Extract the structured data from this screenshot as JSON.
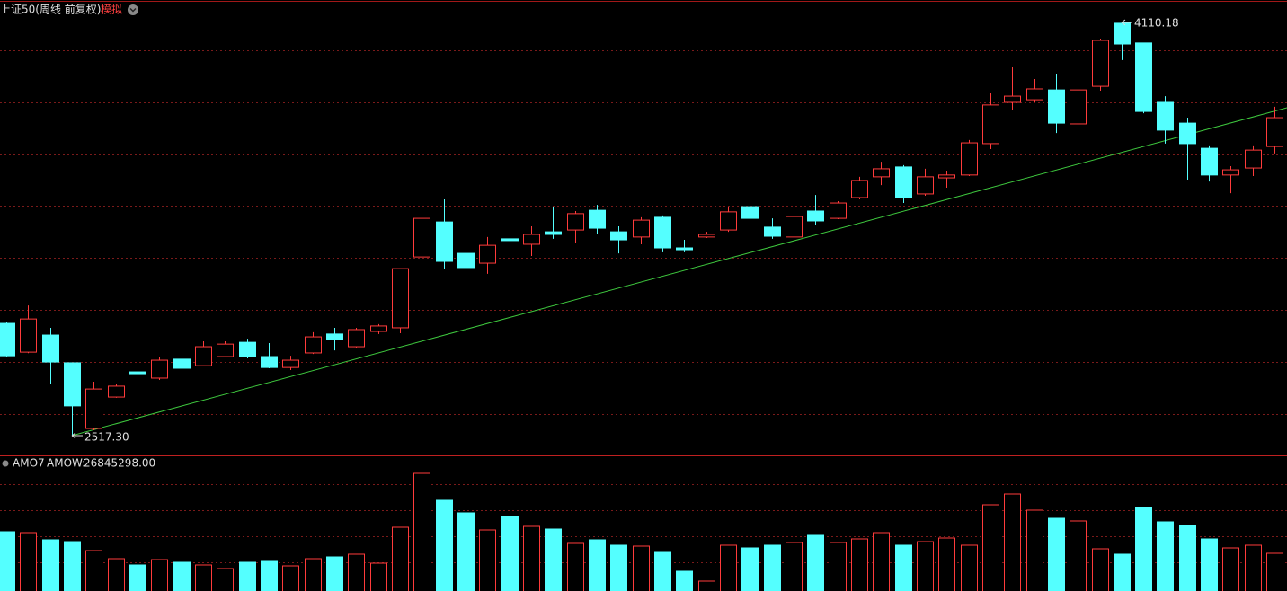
{
  "chart_data": {
    "type": "candlestick",
    "title": "上证50(周线 前复权)",
    "mode": "模拟",
    "up_color": "#ff3b3b",
    "down_color": "#54ffff",
    "open": [
      2950,
      2839,
      2905,
      2798,
      2545,
      2666,
      2763,
      2739,
      2812,
      2787,
      2822,
      2877,
      2822,
      2780,
      2836,
      2909,
      2860,
      2919,
      2933,
      3206,
      3341,
      3220,
      3182,
      3276,
      3255,
      3303,
      3310,
      3386,
      3303,
      3283,
      3359,
      3241,
      3283,
      3310,
      3400,
      3321,
      3283,
      3383,
      3355,
      3435,
      3515,
      3553,
      3449,
      3511,
      3522,
      3643,
      3802,
      3812,
      3850,
      3719,
      3864,
      4107,
      4031,
      3802,
      3722,
      3625,
      3522,
      3549,
      3632
    ],
    "high": [
      2957,
      3019,
      2933,
      2798,
      2725,
      2718,
      2784,
      2819,
      2825,
      2881,
      2881,
      2891,
      2874,
      2825,
      2916,
      2933,
      2933,
      2947,
      3161,
      3473,
      3428,
      3362,
      3283,
      3331,
      3324,
      3400,
      3383,
      3407,
      3324,
      3359,
      3366,
      3272,
      3303,
      3400,
      3435,
      3355,
      3383,
      3445,
      3421,
      3515,
      3573,
      3560,
      3546,
      3539,
      3657,
      3840,
      3937,
      3892,
      3913,
      3861,
      4048,
      4110.18,
      4031,
      3826,
      3743,
      3636,
      3556,
      3636,
      3785
    ],
    "low": [
      2819,
      2835,
      2718,
      2517.3,
      2538,
      2663,
      2742,
      2732,
      2770,
      2784,
      2819,
      2815,
      2777,
      2770,
      2832,
      2846,
      2853,
      2909,
      2912,
      3203,
      3161,
      3151,
      3141,
      3238,
      3210,
      3276,
      3262,
      3293,
      3220,
      3255,
      3224,
      3224,
      3279,
      3303,
      3335,
      3276,
      3258,
      3328,
      3352,
      3428,
      3483,
      3414,
      3442,
      3473,
      3518,
      3622,
      3774,
      3802,
      3684,
      3712,
      3847,
      3965,
      3760,
      3643,
      3504,
      3497,
      3452,
      3518,
      3605
    ],
    "close": [
      2825,
      2967,
      2801,
      2632,
      2697,
      2708,
      2756,
      2808,
      2777,
      2860,
      2870,
      2822,
      2780,
      2808,
      2898,
      2888,
      2926,
      2940,
      3161,
      3355,
      3189,
      3165,
      3251,
      3269,
      3293,
      3293,
      3373,
      3317,
      3272,
      3348,
      3241,
      3234,
      3293,
      3380,
      3355,
      3286,
      3362,
      3345,
      3414,
      3501,
      3546,
      3435,
      3515,
      3522,
      3646,
      3792,
      3826,
      3854,
      3722,
      3850,
      4041,
      4027,
      3767,
      3695,
      3643,
      3522,
      3542,
      3618,
      3743
    ],
    "low_labels": [
      null,
      null,
      null,
      "2517.30",
      null,
      null,
      null,
      null,
      null,
      null,
      null,
      null,
      null,
      null,
      null,
      null,
      null,
      null,
      null,
      null,
      null,
      null,
      null,
      null,
      null,
      null,
      null,
      null,
      null,
      null,
      null,
      null,
      null,
      null,
      null,
      null,
      null,
      null,
      null,
      null,
      null,
      null,
      null,
      null,
      null,
      null,
      null,
      null,
      null,
      null,
      null,
      null,
      null,
      null,
      null,
      null,
      null,
      null,
      null
    ],
    "volume": {
      "indicator": "AMO7",
      "name": "AMOW:",
      "values": [
        42190000,
        41550000,
        36430000,
        35150000,
        28760000,
        23010000,
        18540000,
        22370000,
        20450000,
        18540000,
        15980000,
        20450000,
        21090000,
        17900000,
        23010000,
        24290000,
        26210000,
        19810000,
        45380000,
        83730000,
        64560000,
        55610000,
        43460000,
        53050000,
        46020000,
        44100000,
        33880000,
        36430000,
        32600000,
        31960000,
        27480000,
        14060000,
        7030000,
        32600000,
        30680000,
        32600000,
        34520000,
        39630000,
        34520000,
        37070000,
        41550000,
        32600000,
        35150000,
        37710000,
        32600000,
        61360000,
        69030000,
        57530000,
        51770000,
        49860000,
        30040000,
        26210000,
        59440000,
        49220000,
        46660000,
        37070000,
        30680000,
        32600000,
        26845298
      ],
      "value_labels": [
        null,
        null,
        null,
        null,
        null,
        null,
        null,
        null,
        null,
        null,
        null,
        null,
        null,
        null,
        null,
        null,
        null,
        null,
        null,
        null,
        null,
        null,
        null,
        null,
        null,
        null,
        null,
        null,
        null,
        null,
        null,
        null,
        null,
        null,
        null,
        null,
        null,
        null,
        null,
        null,
        null,
        null,
        null,
        null,
        null,
        null,
        null,
        null,
        null,
        null,
        null,
        null,
        null,
        null,
        null,
        null,
        null,
        null,
        "26845298.00"
      ]
    }
  }
}
